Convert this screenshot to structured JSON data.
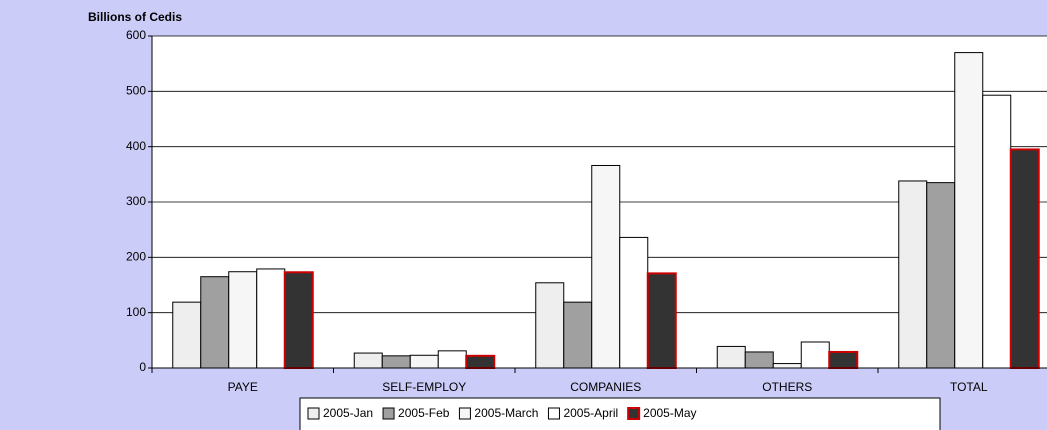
{
  "chart_data": {
    "type": "bar",
    "title": "Billions of Cedis",
    "categories": [
      "PAYE",
      "SELF-EMPLOY",
      "COMPANIES",
      "OTHERS",
      "TOTAL"
    ],
    "series": [
      {
        "name": "2005-Jan",
        "color": "#eeeeee",
        "edgecolor": "#000000",
        "values": [
          119,
          27,
          154,
          39,
          338
        ]
      },
      {
        "name": "2005-Feb",
        "color": "#a0a0a0",
        "edgecolor": "#000000",
        "values": [
          165,
          22,
          119,
          29,
          335
        ]
      },
      {
        "name": "2005-March",
        "color": "#f6f6f6",
        "edgecolor": "#000000",
        "values": [
          174,
          23,
          366,
          8,
          570
        ]
      },
      {
        "name": "2005-April",
        "color": "#ffffff",
        "edgecolor": "#000000",
        "values": [
          179,
          31,
          236,
          47,
          493
        ]
      },
      {
        "name": "2005-May",
        "color": "#333333",
        "edgecolor": "#cc0000",
        "values": [
          173,
          22,
          171,
          29,
          395
        ]
      }
    ],
    "ylim": [
      0,
      600
    ],
    "yticks": [
      0,
      100,
      200,
      300,
      400,
      500,
      600
    ],
    "grid": true
  }
}
